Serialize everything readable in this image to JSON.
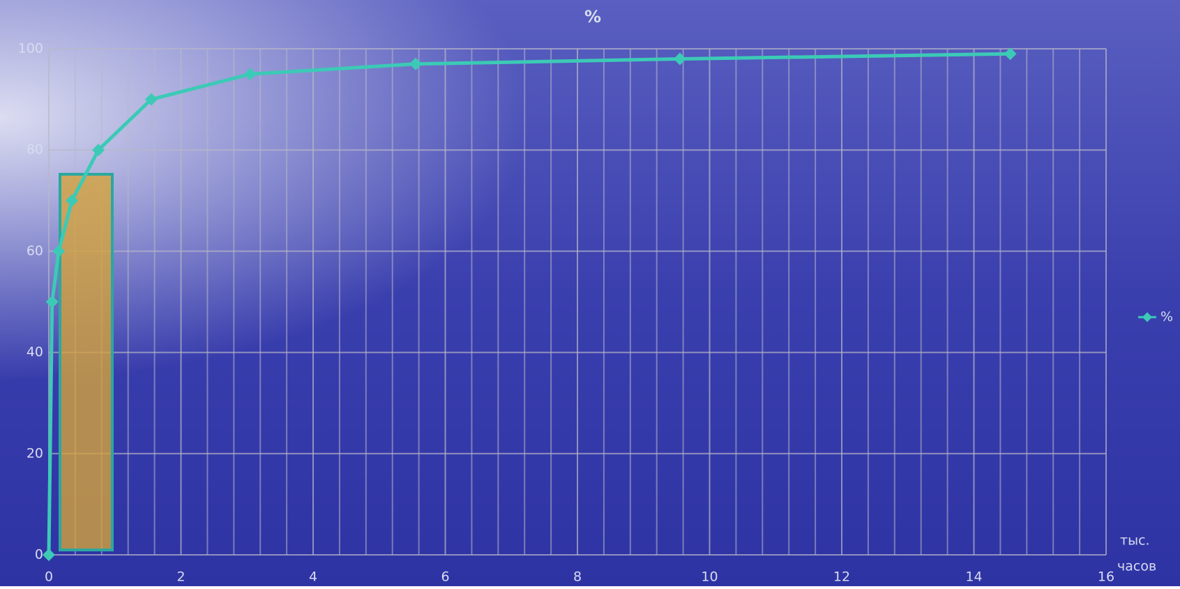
{
  "chart_data": {
    "type": "line",
    "title": "%",
    "x_label": [
      "тыс.",
      "часов"
    ],
    "x": [
      0,
      0.05,
      0.15,
      0.35,
      0.75,
      1.55,
      3.05,
      5.55,
      9.55,
      14.55
    ],
    "series": [
      {
        "name": "%",
        "color": "#3ccab6",
        "values": [
          0,
          50,
          60,
          70,
          80,
          90,
          95,
          97,
          98,
          99
        ]
      }
    ],
    "xlim": [
      0,
      16
    ],
    "xticks": [
      0,
      2,
      4,
      6,
      8,
      10,
      12,
      14,
      16
    ],
    "ylim": [
      0,
      100
    ],
    "yticks": [
      0,
      20,
      40,
      60,
      80,
      100
    ],
    "grid": true,
    "legend": "right"
  }
}
